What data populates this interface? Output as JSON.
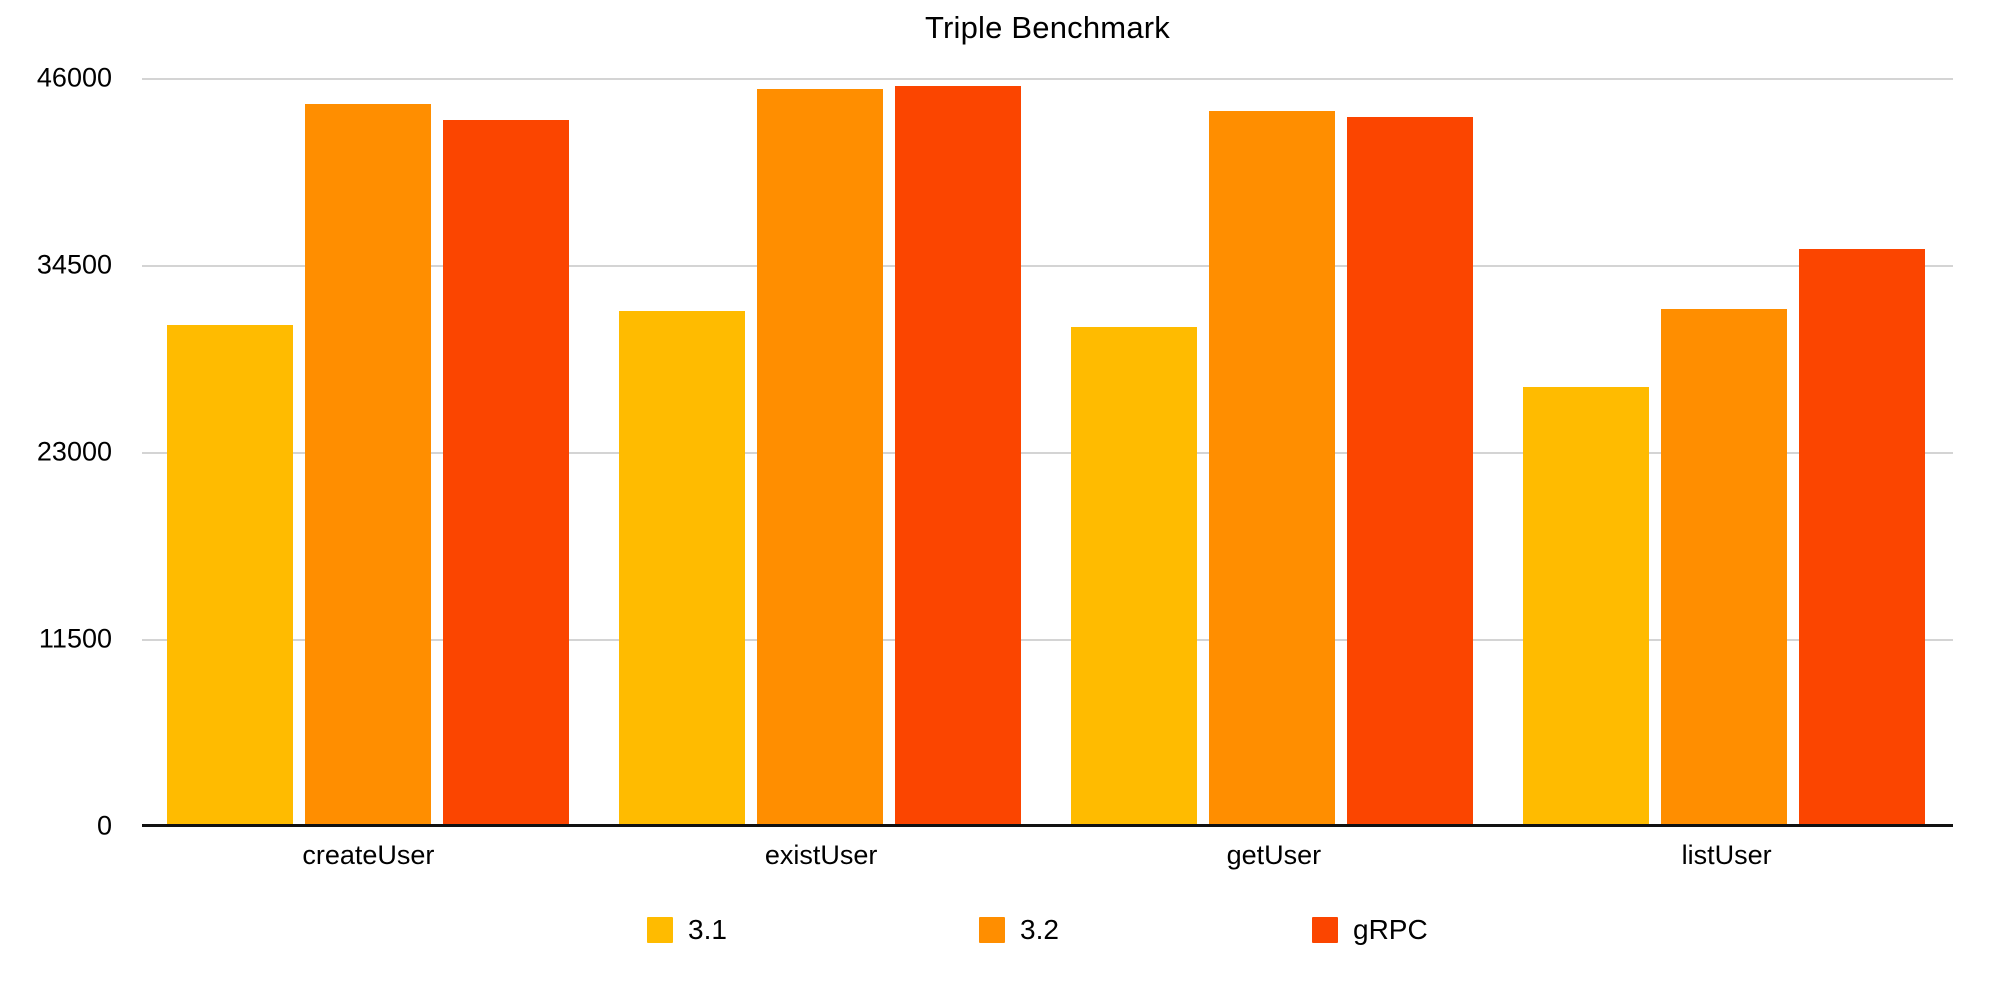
{
  "chart_data": {
    "type": "bar",
    "title": "Triple Benchmark",
    "categories": [
      "createUser",
      "existUser",
      "getUser",
      "listUser"
    ],
    "series": [
      {
        "name": "3.1",
        "color": "#FFBB00",
        "values": [
          30800,
          31700,
          30700,
          27000
        ]
      },
      {
        "name": "3.2",
        "color": "#FF8E00",
        "values": [
          44400,
          45300,
          44000,
          31800
        ]
      },
      {
        "name": "gRPC",
        "color": "#FB4500",
        "values": [
          43400,
          45500,
          43600,
          35500
        ]
      }
    ],
    "ylim": [
      0,
      46000
    ],
    "yticks": [
      "46000",
      "34500",
      "23000",
      "11500",
      "0"
    ],
    "grid": "horizontal",
    "legend_position": "bottom",
    "xlabel": "",
    "ylabel": ""
  },
  "colors": {
    "gridline": "#d4d4d4",
    "axis": "#111111",
    "text": "#000000",
    "background": "#ffffff"
  }
}
